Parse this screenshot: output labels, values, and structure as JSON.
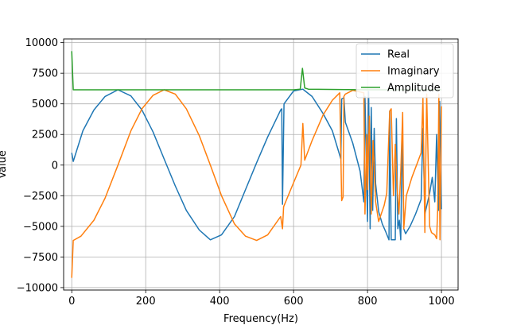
{
  "chart_data": {
    "type": "line",
    "title": "",
    "xlabel": "Frequency(Hz)",
    "ylabel": "Value",
    "xlim": [
      -22,
      1045
    ],
    "ylim": [
      -10200,
      10300
    ],
    "grid": true,
    "legend_position": "upper-right",
    "xticks": [
      0,
      200,
      400,
      600,
      800,
      1000
    ],
    "xtick_labels": [
      "0",
      "200",
      "400",
      "600",
      "800",
      "1000"
    ],
    "yticks": [
      -10000,
      -7500,
      -5000,
      -2500,
      0,
      2500,
      5000,
      7500,
      10000
    ],
    "ytick_labels": [
      "−10000",
      "−7500",
      "−5000",
      "−2500",
      "0",
      "2500",
      "5000",
      "7500",
      "10000"
    ],
    "series": [
      {
        "name": "Real",
        "color": "#1f77b4",
        "points": [
          [
            0,
            1000
          ],
          [
            4,
            300
          ],
          [
            30,
            2800
          ],
          [
            60,
            4500
          ],
          [
            90,
            5600
          ],
          [
            125,
            6150
          ],
          [
            160,
            5650
          ],
          [
            190,
            4500
          ],
          [
            220,
            2700
          ],
          [
            250,
            500
          ],
          [
            280,
            -1700
          ],
          [
            310,
            -3700
          ],
          [
            345,
            -5300
          ],
          [
            375,
            -6100
          ],
          [
            405,
            -5700
          ],
          [
            440,
            -4200
          ],
          [
            470,
            -2000
          ],
          [
            500,
            200
          ],
          [
            530,
            2300
          ],
          [
            565,
            4500
          ],
          [
            568,
            4600
          ],
          [
            570,
            -3200
          ],
          [
            574,
            5000
          ],
          [
            600,
            6050
          ],
          [
            625,
            6200
          ],
          [
            650,
            5600
          ],
          [
            680,
            4200
          ],
          [
            705,
            2800
          ],
          [
            728,
            500
          ],
          [
            730,
            5400
          ],
          [
            736,
            5500
          ],
          [
            740,
            3500
          ],
          [
            760,
            1800
          ],
          [
            780,
            -500
          ],
          [
            790,
            -3000
          ],
          [
            793,
            5600
          ],
          [
            798,
            -2000
          ],
          [
            800,
            -4600
          ],
          [
            803,
            6000
          ],
          [
            807,
            -5200
          ],
          [
            810,
            4700
          ],
          [
            814,
            -3700
          ],
          [
            818,
            3000
          ],
          [
            822,
            -1500
          ],
          [
            830,
            -3800
          ],
          [
            840,
            -4800
          ],
          [
            850,
            -5500
          ],
          [
            858,
            -6100
          ],
          [
            860,
            4400
          ],
          [
            864,
            -6100
          ],
          [
            875,
            -6100
          ],
          [
            878,
            3800
          ],
          [
            882,
            -5200
          ],
          [
            886,
            -4500
          ],
          [
            890,
            -6100
          ],
          [
            894,
            3000
          ],
          [
            898,
            -5200
          ],
          [
            903,
            -5600
          ],
          [
            915,
            -5000
          ],
          [
            930,
            -4000
          ],
          [
            945,
            -2800
          ],
          [
            950,
            3000
          ],
          [
            955,
            -4000
          ],
          [
            968,
            -2300
          ],
          [
            975,
            -1000
          ],
          [
            982,
            -3000
          ],
          [
            987,
            2500
          ],
          [
            992,
            -3700
          ],
          [
            995,
            5200
          ],
          [
            1000,
            -3600
          ]
        ]
      },
      {
        "name": "Imaginary",
        "color": "#ff7f0e",
        "points": [
          [
            0,
            -9200
          ],
          [
            4,
            -6150
          ],
          [
            25,
            -5800
          ],
          [
            60,
            -4500
          ],
          [
            90,
            -2700
          ],
          [
            125,
            0
          ],
          [
            160,
            2800
          ],
          [
            190,
            4600
          ],
          [
            220,
            5700
          ],
          [
            250,
            6150
          ],
          [
            280,
            5800
          ],
          [
            310,
            4600
          ],
          [
            345,
            2400
          ],
          [
            375,
            0
          ],
          [
            405,
            -2500
          ],
          [
            440,
            -4800
          ],
          [
            470,
            -5800
          ],
          [
            500,
            -6150
          ],
          [
            530,
            -5700
          ],
          [
            565,
            -4200
          ],
          [
            570,
            -5200
          ],
          [
            573,
            -3400
          ],
          [
            595,
            -1800
          ],
          [
            620,
            0
          ],
          [
            625,
            3400
          ],
          [
            630,
            400
          ],
          [
            650,
            2000
          ],
          [
            680,
            4100
          ],
          [
            705,
            5300
          ],
          [
            725,
            5900
          ],
          [
            730,
            -2900
          ],
          [
            734,
            -2600
          ],
          [
            736,
            5600
          ],
          [
            740,
            5800
          ],
          [
            760,
            6100
          ],
          [
            790,
            5900
          ],
          [
            793,
            -4000
          ],
          [
            798,
            2500
          ],
          [
            800,
            -2000
          ],
          [
            805,
            4000
          ],
          [
            810,
            -4000
          ],
          [
            815,
            2000
          ],
          [
            822,
            -3000
          ],
          [
            830,
            -4600
          ],
          [
            845,
            -3300
          ],
          [
            852,
            -2300
          ],
          [
            860,
            4400
          ],
          [
            864,
            4600
          ],
          [
            870,
            -2500
          ],
          [
            875,
            1700
          ],
          [
            880,
            -1800
          ],
          [
            885,
            -4000
          ],
          [
            890,
            -500
          ],
          [
            895,
            4300
          ],
          [
            898,
            -5200
          ],
          [
            905,
            -2500
          ],
          [
            920,
            -1000
          ],
          [
            935,
            200
          ],
          [
            945,
            1000
          ],
          [
            950,
            5500
          ],
          [
            955,
            -5500
          ],
          [
            960,
            5800
          ],
          [
            968,
            -5000
          ],
          [
            973,
            -5500
          ],
          [
            982,
            -5700
          ],
          [
            987,
            -6000
          ],
          [
            990,
            -3500
          ],
          [
            993,
            5800
          ],
          [
            996,
            -6100
          ],
          [
            1000,
            4800
          ]
        ]
      },
      {
        "name": "Amplitude",
        "color": "#2ca02c",
        "points": [
          [
            0,
            9300
          ],
          [
            4,
            6150
          ],
          [
            200,
            6150
          ],
          [
            400,
            6150
          ],
          [
            600,
            6150
          ],
          [
            618,
            6200
          ],
          [
            624,
            7900
          ],
          [
            630,
            6300
          ],
          [
            640,
            6200
          ],
          [
            800,
            6150
          ],
          [
            1000,
            6150
          ]
        ]
      }
    ]
  }
}
